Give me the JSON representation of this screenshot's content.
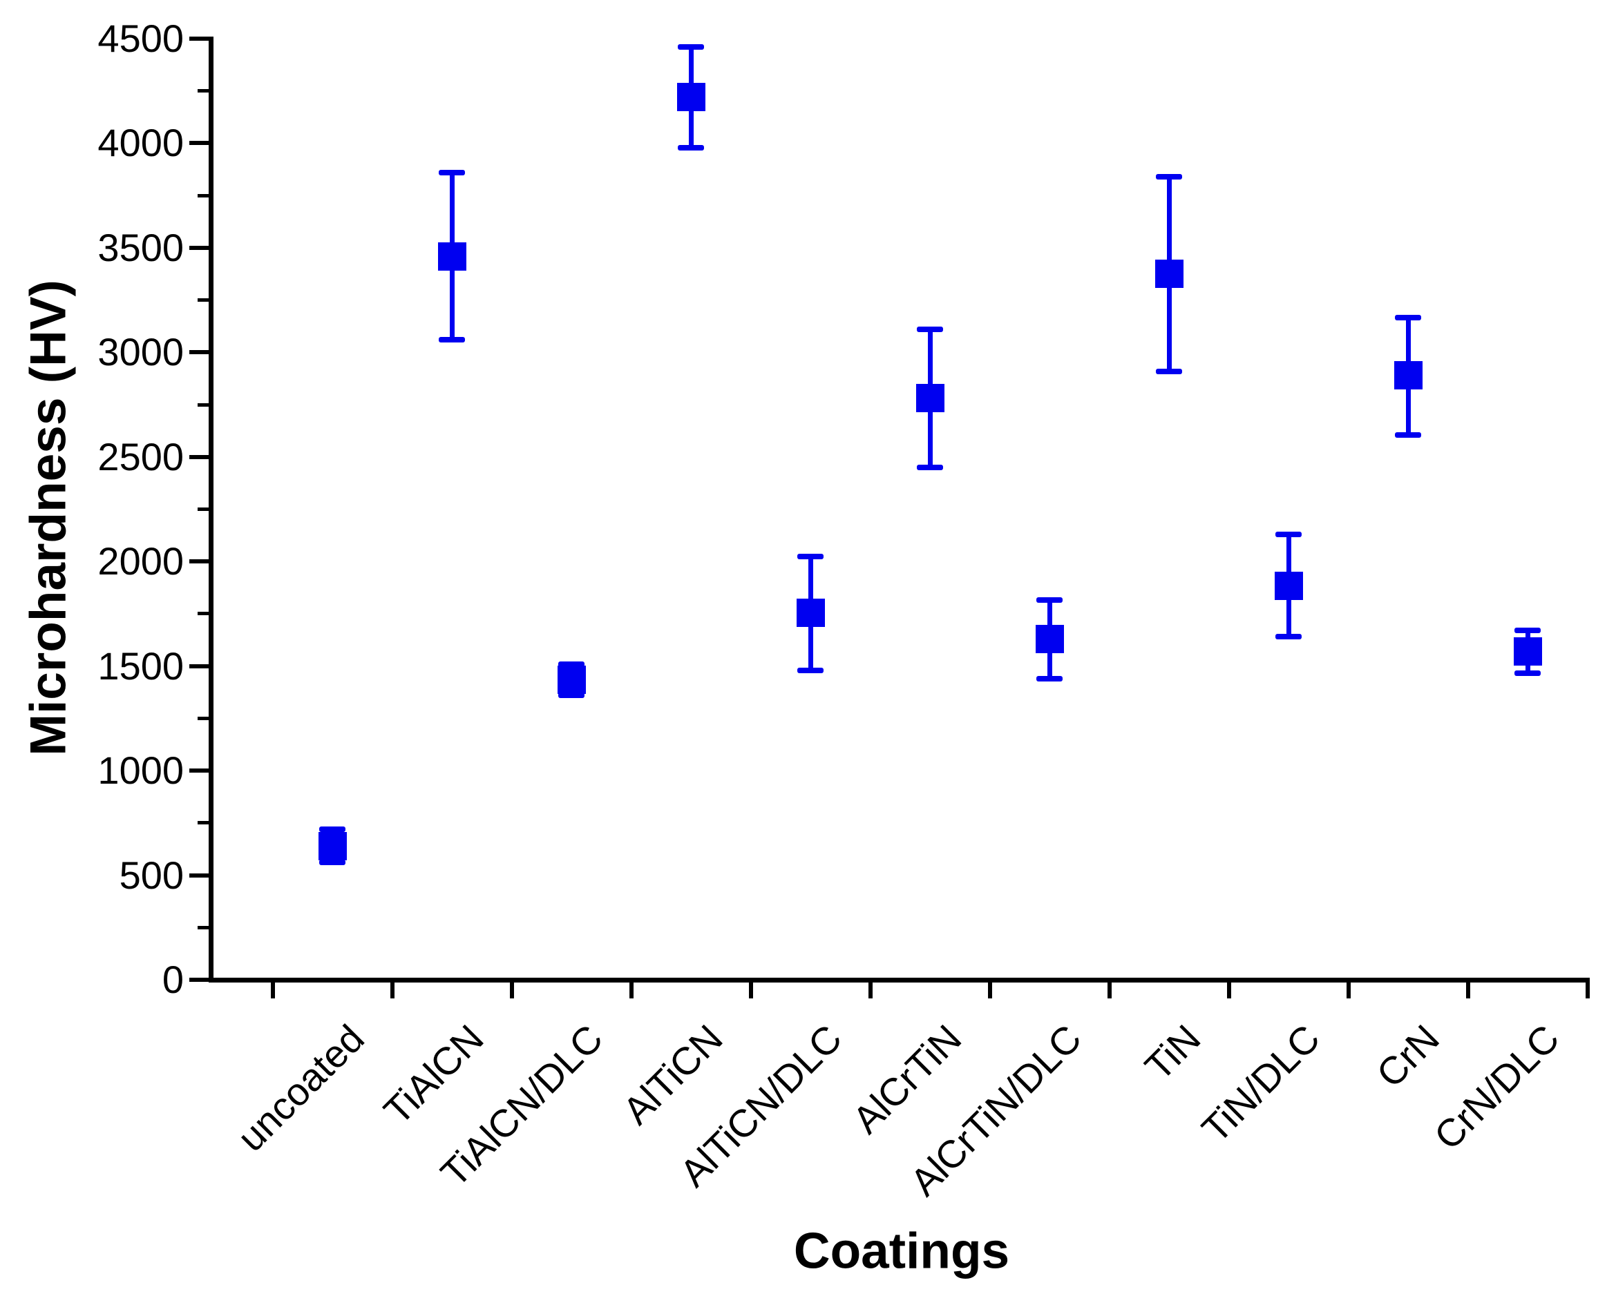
{
  "figure": {
    "background": "#ffffff",
    "text_color": "#000000",
    "axis_color": "#000000"
  },
  "chart_data": {
    "type": "scatter",
    "title": "",
    "xlabel": "Coatings",
    "ylabel": "Microhardness (HV)",
    "marker_shape": "square",
    "marker_color": "#0000F0",
    "error_bars": true,
    "grid": false,
    "legend": false,
    "ylim": [
      0,
      4500
    ],
    "y_major_tick_step": 500,
    "y_minor_tick_step": 250,
    "y_tick_labels": [
      "0",
      "500",
      "1000",
      "1500",
      "2000",
      "2500",
      "3000",
      "3500",
      "4000",
      "4500"
    ],
    "categories": [
      "uncoated",
      "TiAlCN",
      "TiAlCN/DLC",
      "AlTiCN",
      "AlTiCN/DLC",
      "AlCrTiN",
      "AlCrTiN/DLC",
      "TiN",
      "TiN/DLC",
      "CrN",
      "CrN/DLC"
    ],
    "series": [
      {
        "name": "Microhardness (HV)",
        "values": [
          640,
          3460,
          1435,
          4220,
          1755,
          2780,
          1630,
          3375,
          1885,
          2890,
          1570
        ],
        "error_low": [
          560,
          3060,
          1360,
          3980,
          1480,
          2450,
          1440,
          2910,
          1640,
          2605,
          1465
        ],
        "error_high": [
          720,
          3860,
          1510,
          4460,
          2025,
          3110,
          1815,
          3840,
          2130,
          3165,
          1670
        ]
      }
    ]
  }
}
